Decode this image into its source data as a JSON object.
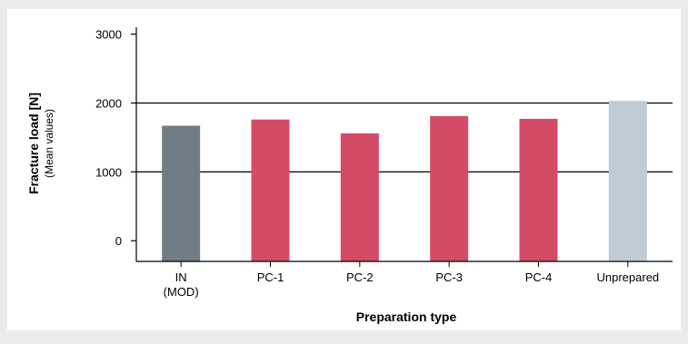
{
  "chart_data": {
    "type": "bar",
    "categories": [
      "IN\n(MOD)",
      "PC-1",
      "PC-2",
      "PC-3",
      "PC-4",
      "Unprepared"
    ],
    "values": [
      1670,
      1760,
      1560,
      1810,
      1770,
      2030
    ],
    "bar_colors": [
      "#717d84",
      "#d34b65",
      "#d34b65",
      "#d34b65",
      "#d34b65",
      "#bfccd3"
    ],
    "ylabel": "Fracture load [N]",
    "ylabel_sub": "(Mean values)",
    "xlabel": "Preparation type",
    "y_ticks": [
      0,
      1000,
      2000,
      3000
    ],
    "y_tick_labels": [
      "0",
      "1000",
      "2000",
      "3000"
    ],
    "gridlines": [
      1000,
      2000
    ],
    "ylim": [
      -300,
      3100
    ],
    "legend": "none"
  }
}
